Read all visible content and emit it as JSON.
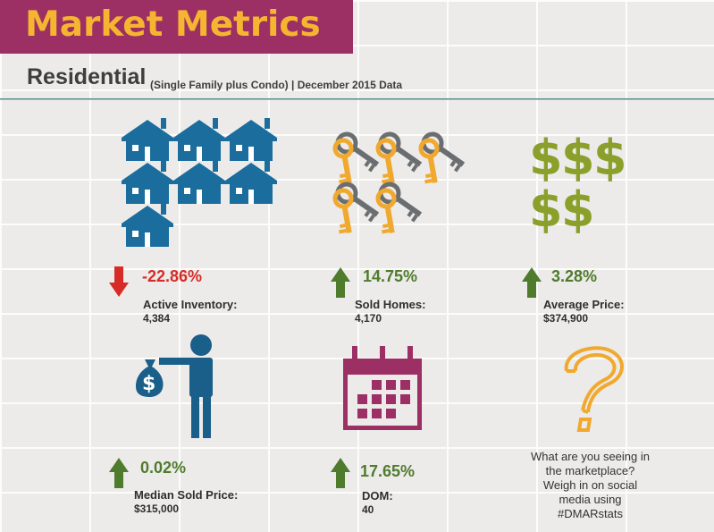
{
  "header": {
    "title": "Market Metrics",
    "section": "Residential",
    "subtitle": "(Single Family plus Condo) | December 2015 Data"
  },
  "colors": {
    "title_bg": "#9c2f64",
    "title_text": "#f6b531",
    "house": "#1a6d9d",
    "key_gray": "#6b6e70",
    "key_gold": "#f0a92e",
    "dollar": "#8aa02b",
    "person": "#1a5e8a",
    "calendar": "#9c2f64",
    "question": "#f0a92e",
    "down": "#d72b27",
    "up": "#4f7b2c"
  },
  "metrics": [
    {
      "id": "active-inventory",
      "direction": "down",
      "change": "-22.86%",
      "label": "Active Inventory:",
      "value": "4,384",
      "icon": "houses-icon"
    },
    {
      "id": "sold-homes",
      "direction": "up",
      "change": "14.75%",
      "label": "Sold Homes:",
      "value": "4,170",
      "icon": "keys-icon"
    },
    {
      "id": "average-price",
      "direction": "up",
      "change": "3.28%",
      "label": "Average Price:",
      "value": "$374,900",
      "icon": "dollar-signs-icon"
    },
    {
      "id": "median-sold-price",
      "direction": "up",
      "change": "0.02%",
      "label": "Median Sold Price:",
      "value": "$315,000",
      "icon": "money-bag-person-icon"
    },
    {
      "id": "dom",
      "direction": "up",
      "change": "17.65%",
      "label": "DOM:",
      "value": "40",
      "icon": "calendar-icon"
    }
  ],
  "prompt": {
    "lines": [
      "What are you seeing in",
      "the marketplace?",
      "Weigh in on social",
      "media using",
      "#DMARstats"
    ],
    "icon": "question-mark-icon"
  }
}
